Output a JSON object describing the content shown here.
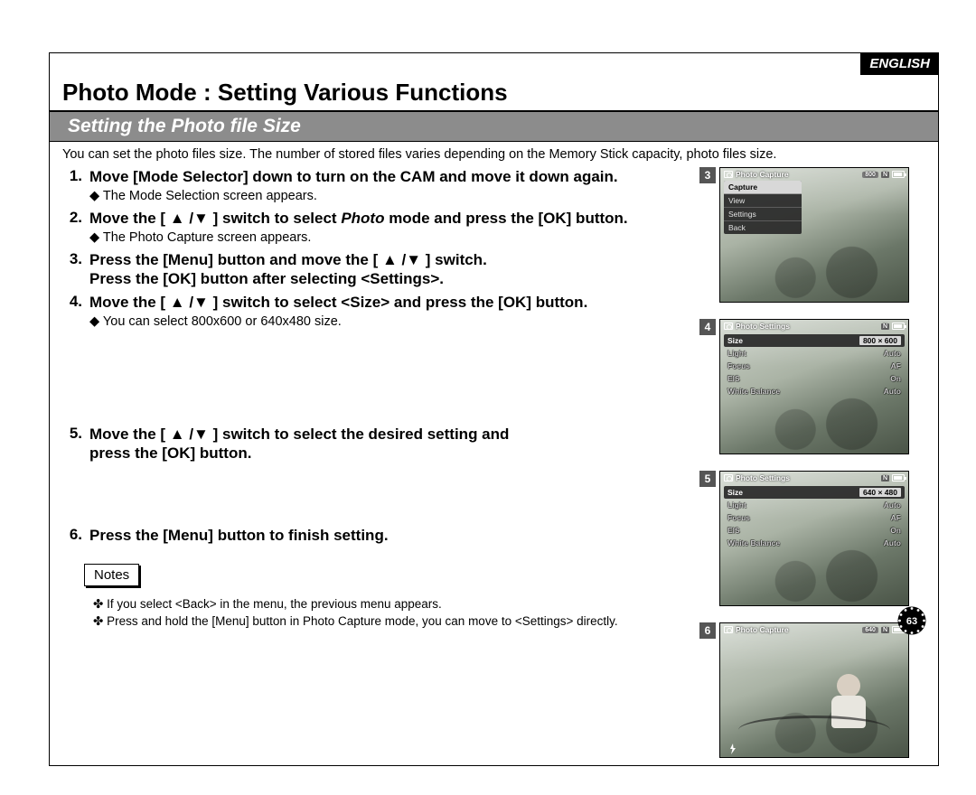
{
  "language_badge": "ENGLISH",
  "title": "Photo Mode : Setting Various Functions",
  "subtitle": "Setting the Photo file Size",
  "intro": "You can set the photo files size. The number of stored files varies depending on the Memory Stick capacity, photo files size.",
  "steps": [
    {
      "n": "1.",
      "main": "Move [Mode Selector] down to turn on the CAM and move it down again.",
      "sub": "The Mode Selection screen appears."
    },
    {
      "n": "2.",
      "main_pre": "Move the [ ▲ /▼ ] switch to select ",
      "main_ital": "Photo",
      "main_post": " mode and press the [OK] button.",
      "sub": "The Photo Capture screen appears."
    },
    {
      "n": "3.",
      "main": "Press the [Menu] button and move the [ ▲ /▼ ] switch.\nPress the [OK] button after selecting <Settings>."
    },
    {
      "n": "4.",
      "main": "Move the [ ▲ /▼ ] switch to select <Size> and press the [OK] button.",
      "sub": "You can select 800x600 or 640x480 size."
    },
    {
      "n": "5.",
      "main": "Move the [ ▲ /▼ ] switch to select the desired setting and\npress the [OK] button."
    },
    {
      "n": "6.",
      "main": "Press the [Menu] button to finish setting."
    }
  ],
  "notes_label": "Notes",
  "notes": [
    "If you select <Back> in the menu, the previous menu appears.",
    "Press and hold the [Menu] button in Photo Capture mode, you can move to <Settings> directly."
  ],
  "page_number": "63",
  "shots": [
    {
      "num": "3",
      "top_label": "Photo Capture",
      "size_pill": "800",
      "menu": [
        "Capture",
        "View",
        "Settings",
        "Back"
      ],
      "menu_selected_index": 0
    },
    {
      "num": "4",
      "top_label": "Photo Settings",
      "rows": [
        {
          "k": "Size",
          "v": "800 × 600",
          "active": true
        },
        {
          "k": "Light",
          "v": "Auto"
        },
        {
          "k": "Focus",
          "v": "AF"
        },
        {
          "k": "EIS",
          "v": "On"
        },
        {
          "k": "White Balance",
          "v": "Auto"
        }
      ]
    },
    {
      "num": "5",
      "top_label": "Photo Settings",
      "rows": [
        {
          "k": "Size",
          "v": "640 × 480",
          "active": true
        },
        {
          "k": "Light",
          "v": "Auto"
        },
        {
          "k": "Focus",
          "v": "AF"
        },
        {
          "k": "EIS",
          "v": "On"
        },
        {
          "k": "White Balance",
          "v": "Auto"
        }
      ]
    },
    {
      "num": "6",
      "top_label": "Photo Capture",
      "size_pill": "640",
      "show_scene": true
    }
  ],
  "colors": {
    "subtitle_bg": "#8c8c8c",
    "shot_num_bg": "#555555",
    "menu_bg": "rgba(40,40,40,0.92)"
  }
}
